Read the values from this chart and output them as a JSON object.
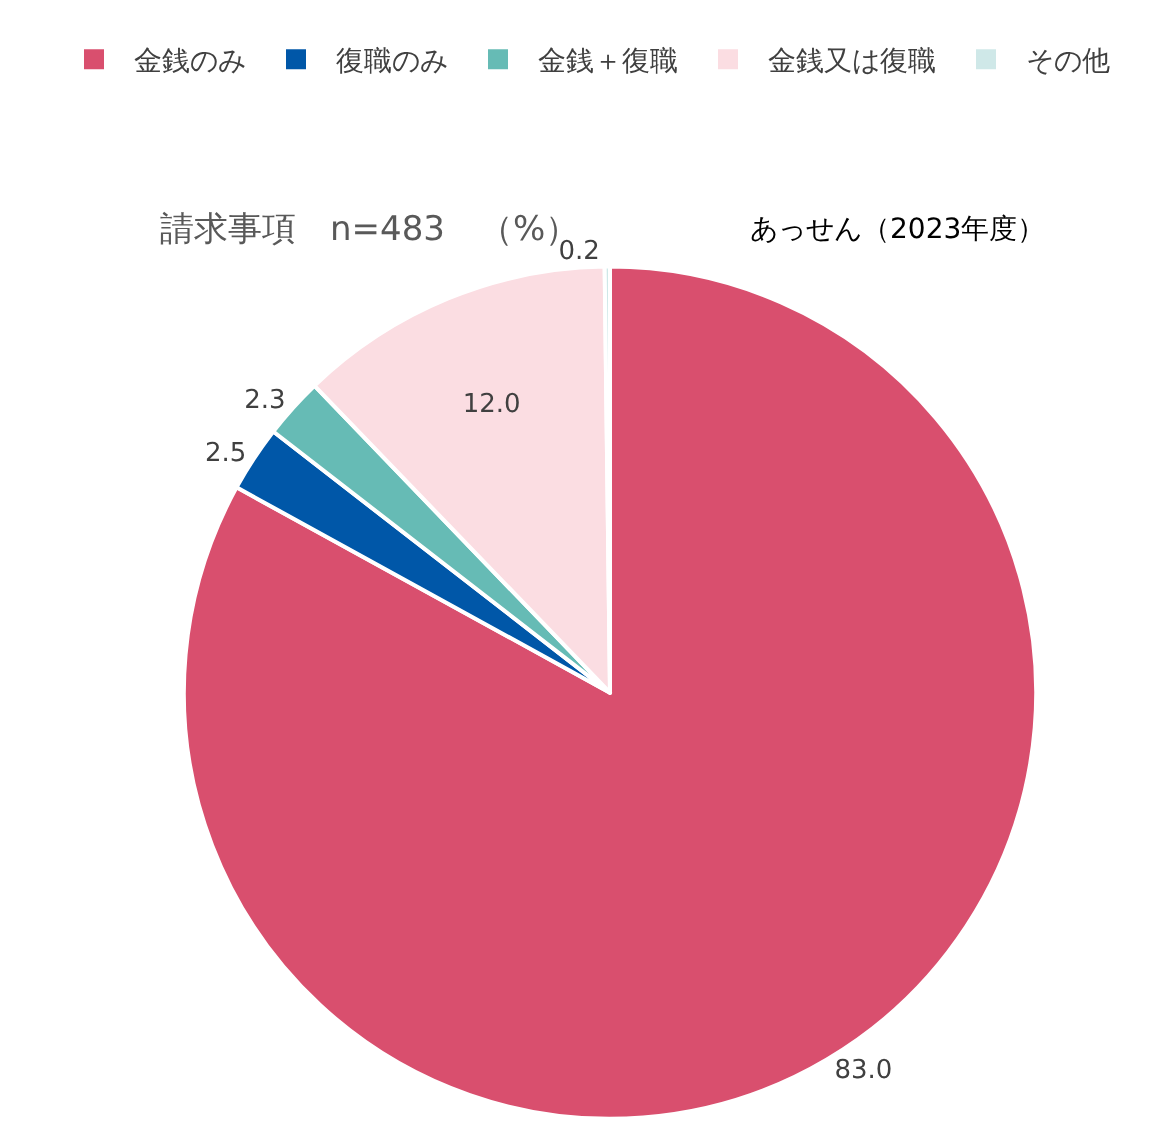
{
  "chart_data": {
    "type": "pie",
    "title": "請求事項　n=483　（%）",
    "subtitle": "あっせん（2023年度）",
    "categories": [
      "金銭のみ",
      "復職のみ",
      "金銭＋復職",
      "金銭又は復職",
      "その他"
    ],
    "values": [
      83.0,
      2.5,
      2.3,
      12.0,
      0.2
    ],
    "value_labels": [
      "83.0",
      "2.5",
      "2.3",
      "12.0",
      "0.2"
    ],
    "colors": [
      "#d94f6e",
      "#0057a8",
      "#66bbb5",
      "#fbdde2",
      "#cfe8e8"
    ],
    "legend": "top"
  }
}
